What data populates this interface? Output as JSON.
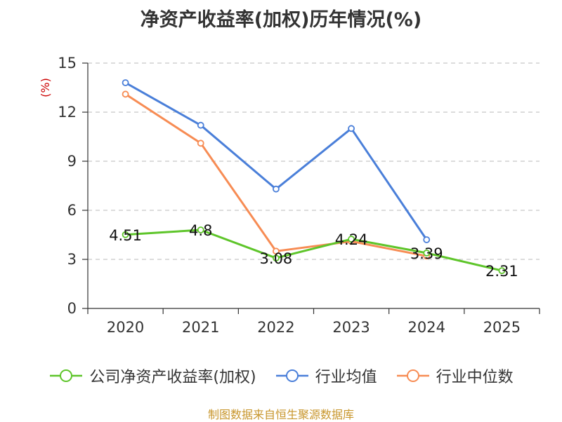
{
  "chart_data": {
    "type": "line",
    "title": "净资产收益率(加权)历年情况(%)",
    "ylabel": "(%)",
    "xlabel": "",
    "categories": [
      "2020",
      "2021",
      "2022",
      "2023",
      "2024",
      "2025"
    ],
    "ylim": [
      0,
      15
    ],
    "yticks": [
      0,
      3,
      6,
      9,
      12,
      15
    ],
    "grid": true,
    "legend_position": "bottom",
    "series": [
      {
        "name": "公司净资产收益率(加权)",
        "color": "#5ec52a",
        "values": [
          4.51,
          4.8,
          3.08,
          4.24,
          3.39,
          2.31
        ],
        "labels": [
          "4.51",
          "4.8",
          "3.08",
          "4.24",
          "3.39",
          "2.31"
        ]
      },
      {
        "name": "行业均值",
        "color": "#4a7fd9",
        "values": [
          13.8,
          11.2,
          7.3,
          11.0,
          4.2,
          null
        ]
      },
      {
        "name": "行业中位数",
        "color": "#f78c54",
        "values": [
          13.1,
          10.1,
          3.5,
          4.1,
          3.2,
          null
        ]
      }
    ]
  },
  "source": {
    "text": "制图数据来自恒生聚源数据库",
    "color": "#c8962c"
  },
  "ylabel_color": "#cc0000"
}
